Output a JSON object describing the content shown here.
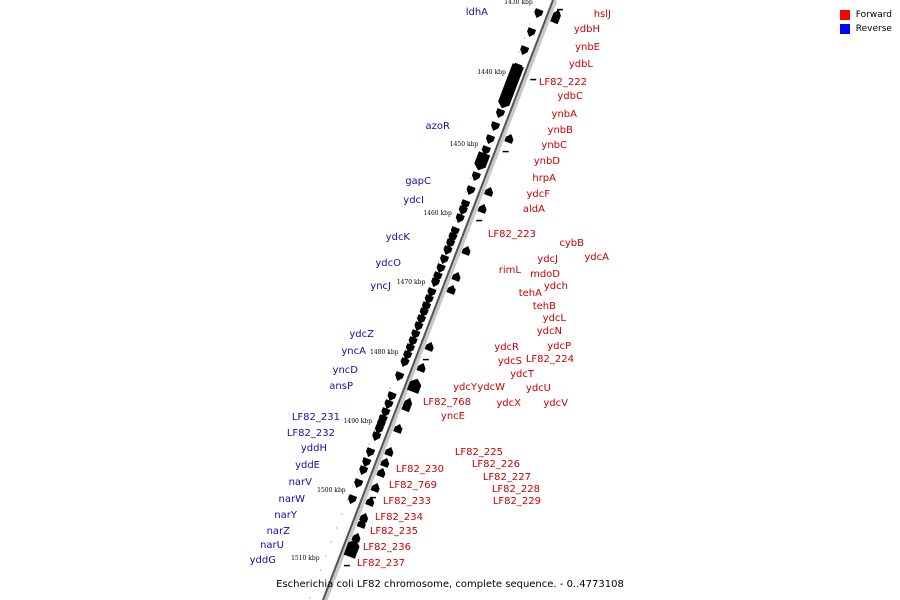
{
  "legend": {
    "forward": {
      "label": "Forward",
      "color": "#ff0000"
    },
    "reverse": {
      "label": "Reverse",
      "color": "#0000ff"
    }
  },
  "caption": "Escherichia coli LF82 chromosome, complete sequence. - 0..4773108",
  "ticks": [
    "1430 kbp",
    "1440 kbp",
    "1450 kbp",
    "1460 kbp",
    "1470 kbp",
    "1480 kbp",
    "1490 kbp",
    "1500 kbp",
    "1510 kbp"
  ],
  "reverse_genes": [
    "ldhA",
    "azoR",
    "gapC",
    "ydcI",
    "ydcK",
    "ydcO",
    "yncJ",
    "ydcZ",
    "yncA",
    "yncD",
    "ansP",
    "LF82_231",
    "LF82_232",
    "yddH",
    "yddE",
    "narV",
    "narW",
    "narY",
    "narZ",
    "narU",
    "yddG"
  ],
  "forward_genes": [
    "hslJ",
    "ydbH",
    "ynbE",
    "ydbL",
    "LF82_222",
    "ydbC",
    "ynbA",
    "ynbB",
    "ynbC",
    "ynbD",
    "hrpA",
    "ydcF",
    "aldA",
    "LF82_223",
    "cybB",
    "ydcA",
    "ydcJ",
    "rimL",
    "mdoD",
    "ydch",
    "tehA",
    "tehB",
    "ydcL",
    "ydcN",
    "ydcR",
    "ydcP",
    "ydcS",
    "LF82_224",
    "ydcT",
    "ydcY",
    "ydcW",
    "ydcU",
    "LF82_768",
    "ydcX",
    "ydcV",
    "yncE",
    "LF82_225",
    "LF82_226",
    "LF82_227",
    "LF82_228",
    "LF82_230",
    "LF82_229",
    "LF82_769",
    "LF82_233",
    "LF82_234",
    "LF82_235",
    "LF82_236",
    "LF82_237"
  ]
}
